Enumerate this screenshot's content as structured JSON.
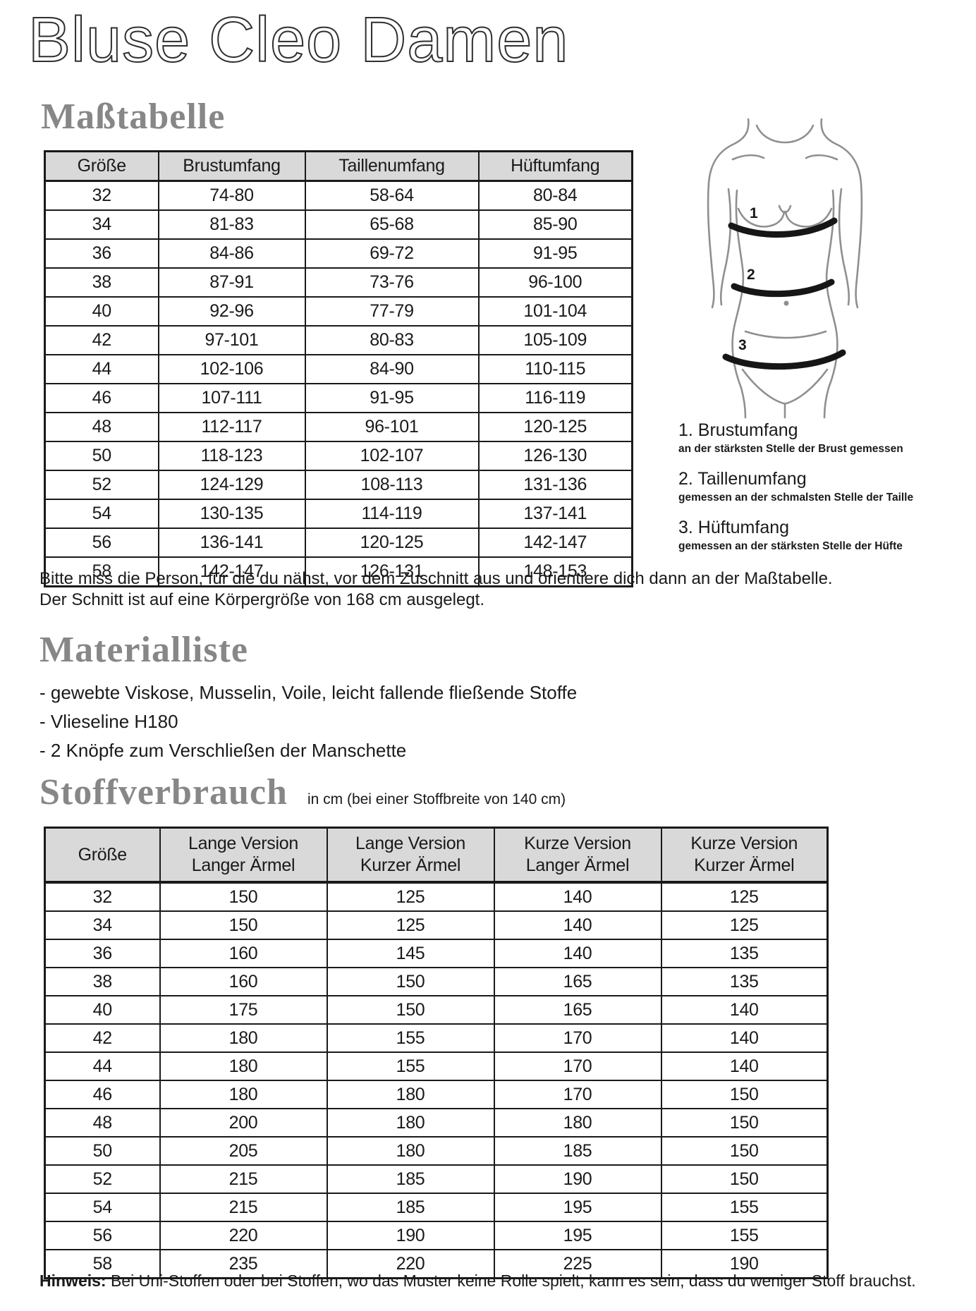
{
  "doc": {
    "title": "Bluse Cleo Damen"
  },
  "size_section": {
    "heading": "Maßtabelle",
    "table": {
      "headers": [
        "Größe",
        "Brustumfang",
        "Taillenumfang",
        "Hüftumfang"
      ],
      "rows": [
        [
          "32",
          "74-80",
          "58-64",
          "80-84"
        ],
        [
          "34",
          "81-83",
          "65-68",
          "85-90"
        ],
        [
          "36",
          "84-86",
          "69-72",
          "91-95"
        ],
        [
          "38",
          "87-91",
          "73-76",
          "96-100"
        ],
        [
          "40",
          "92-96",
          "77-79",
          "101-104"
        ],
        [
          "42",
          "97-101",
          "80-83",
          "105-109"
        ],
        [
          "44",
          "102-106",
          "84-90",
          "110-115"
        ],
        [
          "46",
          "107-111",
          "91-95",
          "116-119"
        ],
        [
          "48",
          "112-117",
          "96-101",
          "120-125"
        ],
        [
          "50",
          "118-123",
          "102-107",
          "126-130"
        ],
        [
          "52",
          "124-129",
          "108-113",
          "131-136"
        ],
        [
          "54",
          "130-135",
          "114-119",
          "137-141"
        ],
        [
          "56",
          "136-141",
          "120-125",
          "142-147"
        ],
        [
          "58",
          "142-147",
          "126-131",
          "148-153"
        ]
      ]
    },
    "diagram": {
      "band_labels": [
        "1",
        "2",
        "3"
      ],
      "annotations": [
        {
          "title": "1. Brustumfang",
          "subtitle": "an der stärksten Stelle der Brust gemessen"
        },
        {
          "title": "2. Taillenumfang",
          "subtitle": "gemessen an der schmalsten Stelle der Taille"
        },
        {
          "title": "3. Hüftumfang",
          "subtitle": "gemessen an der stärksten Stelle der Hüfte"
        }
      ]
    },
    "note_line1": "Bitte miss die Person, für die du nähst, vor dem Zuschnitt aus und orientiere dich dann an der Maßtabelle.",
    "note_line2": "Der Schnitt ist auf eine Körpergröße von 168 cm ausgelegt."
  },
  "materials_section": {
    "heading": "Materialliste",
    "items": [
      "- gewebte Viskose, Musselin, Voile, leicht fallende fließende Stoffe",
      "- Vlieseline H180",
      "- 2 Knöpfe zum Verschließen der Manschette"
    ]
  },
  "fabric_section": {
    "heading": "Stoffverbrauch",
    "subtitle": "in cm (bei einer Stoffbreite von 140 cm)",
    "table": {
      "headers": [
        "Größe",
        [
          "Lange Version",
          "Langer Ärmel"
        ],
        [
          "Lange Version",
          "Kurzer Ärmel"
        ],
        [
          "Kurze Version",
          "Langer Ärmel"
        ],
        [
          "Kurze Version",
          "Kurzer Ärmel"
        ]
      ],
      "rows": [
        [
          "32",
          "150",
          "125",
          "140",
          "125"
        ],
        [
          "34",
          "150",
          "125",
          "140",
          "125"
        ],
        [
          "36",
          "160",
          "145",
          "140",
          "135"
        ],
        [
          "38",
          "160",
          "150",
          "165",
          "135"
        ],
        [
          "40",
          "175",
          "150",
          "165",
          "140"
        ],
        [
          "42",
          "180",
          "155",
          "170",
          "140"
        ],
        [
          "44",
          "180",
          "155",
          "170",
          "140"
        ],
        [
          "46",
          "180",
          "180",
          "170",
          "150"
        ],
        [
          "48",
          "200",
          "180",
          "180",
          "150"
        ],
        [
          "50",
          "205",
          "180",
          "185",
          "150"
        ],
        [
          "52",
          "215",
          "185",
          "190",
          "150"
        ],
        [
          "54",
          "215",
          "185",
          "195",
          "155"
        ],
        [
          "56",
          "220",
          "190",
          "195",
          "155"
        ],
        [
          "58",
          "235",
          "220",
          "225",
          "190"
        ]
      ]
    }
  },
  "footer": {
    "hinweis_label": "Hinweis:",
    "hinweis_text": " Bei Uni-Stoffen oder bei Stoffen, wo das Muster keine Rolle spielt, kann es sein, dass du weniger Stoff brauchst."
  },
  "colors": {
    "title_color": "#2f2f2f",
    "heading_gray": "#878787",
    "table_header_bg": "#d9d9d9",
    "border_black": "#1a1a1a",
    "figure_line_gray": "#8f8f8f",
    "band_black": "#161616"
  }
}
